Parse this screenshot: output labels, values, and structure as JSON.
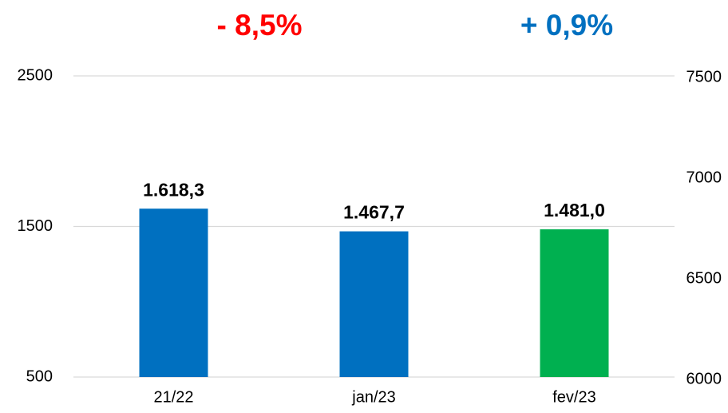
{
  "chart_data": {
    "type": "bar",
    "annotations": [
      {
        "text": "- 8,5%",
        "color": "#ff0000"
      },
      {
        "text": "+ 0,9%",
        "color": "#0070c0"
      }
    ],
    "categories": [
      "21/22",
      "jan/23",
      "fev/23"
    ],
    "values": [
      1618.3,
      1467.7,
      1481.0
    ],
    "value_labels": [
      "1.618,3",
      "1.467,7",
      "1.481,0"
    ],
    "colors": [
      "#0070c0",
      "#0070c0",
      "#00b050"
    ],
    "ylim": [
      500,
      2500
    ],
    "yticks": [
      500,
      1500,
      2500
    ],
    "y2lim": [
      6000,
      7500
    ],
    "y2ticks": [
      6000,
      6500,
      7000,
      7500
    ],
    "grid": true
  }
}
